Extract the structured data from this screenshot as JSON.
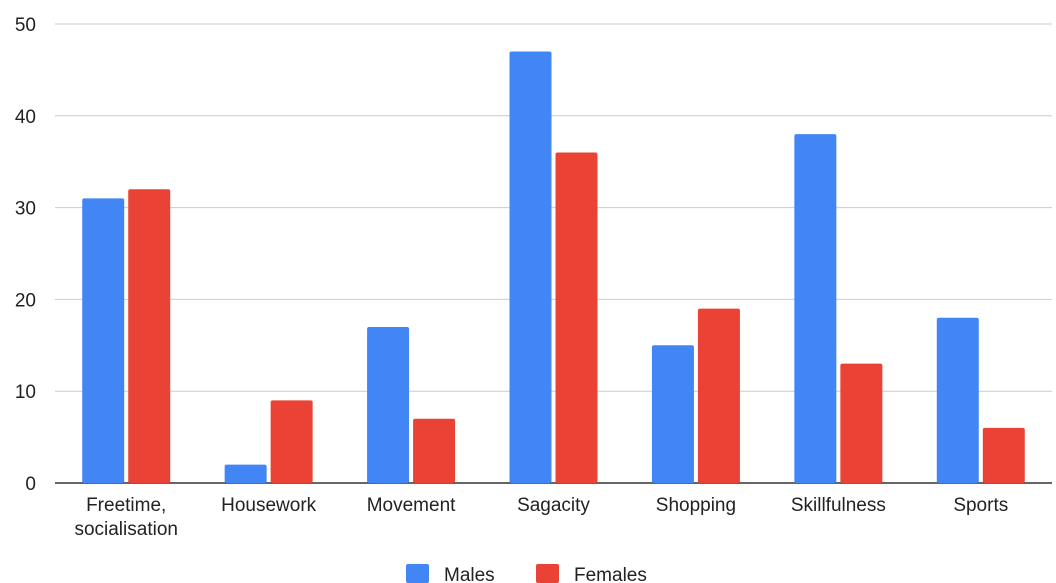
{
  "chart_data": {
    "type": "bar",
    "categories": [
      [
        "Freetime,",
        "socialisation"
      ],
      [
        "Housework"
      ],
      [
        "Movement"
      ],
      [
        "Sagacity"
      ],
      [
        "Shopping"
      ],
      [
        "Skillfulness"
      ],
      [
        "Sports"
      ]
    ],
    "series": [
      {
        "name": "Males",
        "color": "#4285f4",
        "values": [
          31,
          2,
          17,
          47,
          15,
          38,
          18
        ]
      },
      {
        "name": "Females",
        "color": "#ea4335",
        "values": [
          32,
          9,
          7,
          36,
          19,
          13,
          6
        ]
      }
    ],
    "yticks": [
      "0",
      "10",
      "20",
      "30",
      "40",
      "50"
    ],
    "ylim": [
      0,
      50
    ],
    "grid": true,
    "legend_position": "bottom-center",
    "title": "",
    "xlabel": "",
    "ylabel": ""
  }
}
